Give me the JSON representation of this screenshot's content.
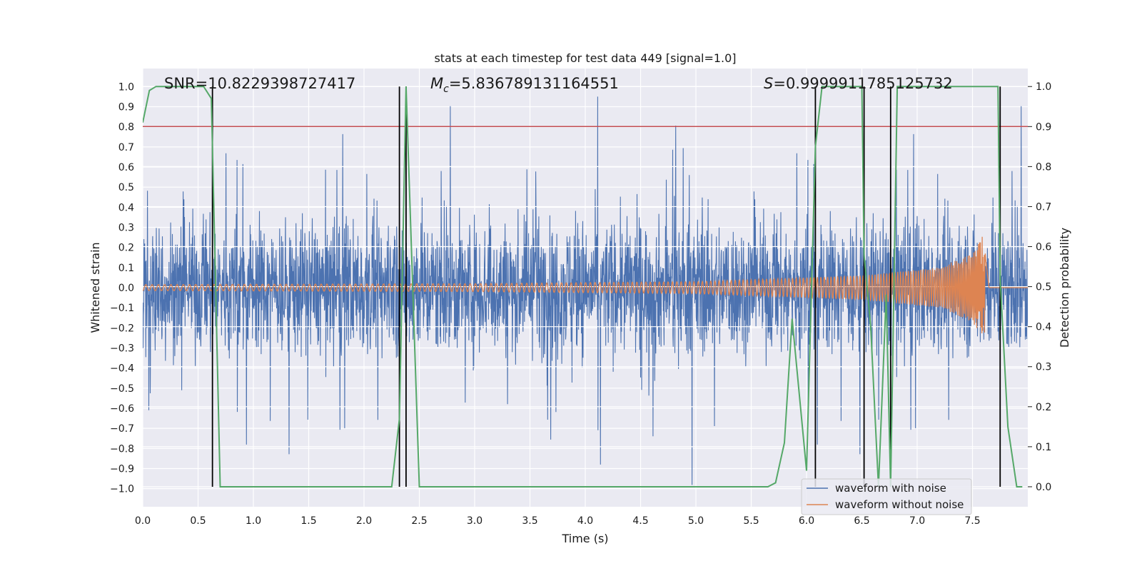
{
  "chart_data": {
    "type": "line",
    "title": "stats at each timestep for test data 449 [signal=1.0]",
    "xlabel": "Time (s)",
    "ylabel_left": "Whitened strain",
    "ylabel_right": "Detection probability",
    "xlim": [
      0.0,
      8.0
    ],
    "ylim_left": [
      -1.09,
      1.09
    ],
    "ylim_right": [
      -0.05,
      1.045
    ],
    "x_ticks": [
      0.0,
      0.5,
      1.0,
      1.5,
      2.0,
      2.5,
      3.0,
      3.5,
      4.0,
      4.5,
      5.0,
      5.5,
      6.0,
      6.5,
      7.0,
      7.5
    ],
    "x_tick_labels": [
      "0.0",
      "0.5",
      "1.0",
      "1.5",
      "2.0",
      "2.5",
      "3.0",
      "3.5",
      "4.0",
      "4.5",
      "5.0",
      "5.5",
      "6.0",
      "6.5",
      "7.0",
      "7.5"
    ],
    "y_left_ticks": [
      -1.0,
      -0.9,
      -0.8,
      -0.7,
      -0.6,
      -0.5,
      -0.4,
      -0.3,
      -0.2,
      -0.1,
      0.0,
      0.1,
      0.2,
      0.3,
      0.4,
      0.5,
      0.6,
      0.7,
      0.8,
      0.9,
      1.0
    ],
    "y_left_tick_labels": [
      "−1.0",
      "−0.9",
      "−0.8",
      "−0.7",
      "−0.6",
      "−0.5",
      "−0.4",
      "−0.3",
      "−0.2",
      "−0.1",
      "0.0",
      "0.1",
      "0.2",
      "0.3",
      "0.4",
      "0.5",
      "0.6",
      "0.7",
      "0.8",
      "0.9",
      "1.0"
    ],
    "y_right_ticks": [
      0.0,
      0.1,
      0.2,
      0.3,
      0.4,
      0.5,
      0.6,
      0.7,
      0.8,
      0.9,
      1.0
    ],
    "y_right_tick_labels": [
      "0.0",
      "0.1",
      "0.2",
      "0.3",
      "0.4",
      "0.5",
      "0.6",
      "0.7",
      "0.8",
      "0.9",
      "1.0"
    ],
    "grid": true,
    "legend_placement": "lower-right",
    "annotations": {
      "snr": "SNR=10.8229398727417",
      "mc_symbol": "M",
      "mc_subscript": "c",
      "mc_value": "=5.836789131164551",
      "s_symbol": "S",
      "s_value": "=0.9999911785125732"
    },
    "threshold_line": {
      "axis": "right",
      "y": 0.9,
      "color": "#c44e52"
    },
    "vertical_markers_x": [
      0.63,
      2.32,
      2.38,
      6.08,
      6.52,
      6.76,
      7.75
    ],
    "series": [
      {
        "name": "waveform with noise",
        "axis": "left",
        "color": "#4c72b0",
        "style": "dense noise, typical envelope ±0.35, peaks reaching about +0.95 and −0.99"
      },
      {
        "name": "waveform without noise",
        "axis": "left",
        "color": "#dd8452",
        "envelope": {
          "t": [
            0.0,
            3.0,
            5.0,
            6.5,
            7.2,
            7.5,
            7.58,
            7.6,
            7.65,
            8.0
          ],
          "amp": [
            0.015,
            0.02,
            0.03,
            0.06,
            0.1,
            0.17,
            0.24,
            0.28,
            0.0,
            0.0
          ]
        }
      },
      {
        "name": "Detection probability",
        "axis": "right",
        "color": "#55a868",
        "x": [
          0.0,
          0.06,
          0.12,
          0.55,
          0.62,
          0.7,
          2.25,
          2.32,
          2.38,
          2.5,
          5.65,
          5.72,
          5.8,
          5.87,
          6.0,
          6.08,
          6.14,
          6.5,
          6.52,
          6.58,
          6.65,
          6.72,
          6.76,
          6.82,
          7.73,
          7.75,
          7.82,
          7.9,
          7.95
        ],
        "y": [
          0.91,
          0.99,
          1.0,
          1.0,
          0.97,
          0.0,
          0.0,
          0.17,
          1.0,
          0.0,
          0.0,
          0.01,
          0.11,
          0.42,
          0.04,
          0.85,
          1.0,
          1.0,
          0.58,
          0.4,
          0.0,
          0.48,
          0.0,
          1.0,
          1.0,
          0.52,
          0.15,
          0.0,
          0.0
        ]
      }
    ]
  }
}
